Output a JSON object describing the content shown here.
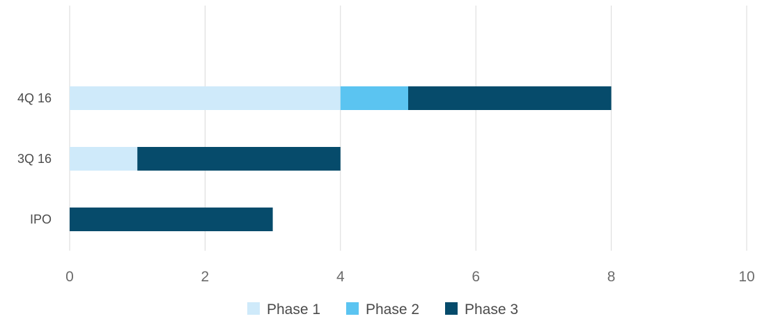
{
  "chart_data": {
    "type": "bar",
    "orientation": "horizontal",
    "stacked": true,
    "categories": [
      "IPO",
      "3Q 16",
      "4Q 16"
    ],
    "series": [
      {
        "name": "Phase 1",
        "values": [
          0,
          1,
          4
        ],
        "color": "#cfeafa"
      },
      {
        "name": "Phase 2",
        "values": [
          0,
          0,
          1
        ],
        "color": "#5bc4f1"
      },
      {
        "name": "Phase 3",
        "values": [
          3,
          3,
          3
        ],
        "color": "#064b6b"
      }
    ],
    "xlim": [
      0,
      10
    ],
    "xticks": [
      "0",
      "2",
      "4",
      "6",
      "8",
      "10"
    ],
    "grid": "vertical",
    "legend": "bottom-center",
    "title": "",
    "xlabel": "",
    "ylabel": ""
  }
}
